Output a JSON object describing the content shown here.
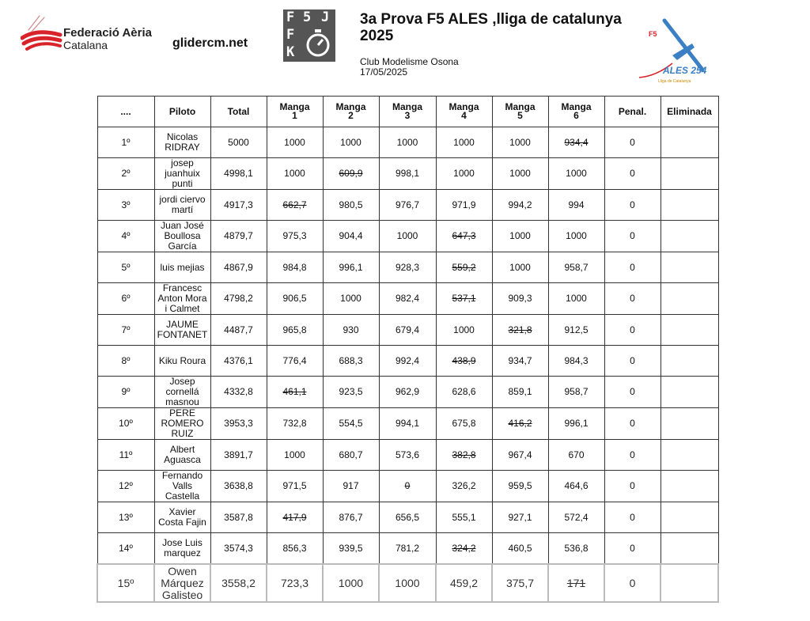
{
  "header": {
    "federation_name_line1": "Federació Aèria",
    "federation_name_line2": "Catalana",
    "website": "glidercm.net",
    "class_logo_letters": [
      "F",
      "5",
      "J",
      "F",
      "3",
      "K"
    ],
    "title": "3a Prova F5 ALES ,lliga de catalunya 2025",
    "club": "Club Modelisme Osona",
    "date": "17/05/2025",
    "ales_logo_text": "ALES 254",
    "ales_logo_f5": "F5",
    "ales_logo_sub": "Lliga de Catalunya"
  },
  "colors": {
    "federation_red": "#d8232a",
    "ales_blue": "#3b7fc4"
  },
  "table": {
    "columns": [
      "....",
      "Piloto",
      "Total",
      "Manga 1",
      "Manga 2",
      "Manga 3",
      "Manga 4",
      "Manga 5",
      "Manga 6",
      "Penal.",
      "Eliminada"
    ],
    "rows": [
      {
        "pos": "1º",
        "pilot": "Nicolas RIDRAY",
        "total": "5000",
        "mangas": [
          "1000",
          "1000",
          "1000",
          "1000",
          "1000",
          "934,4"
        ],
        "discarded": 6,
        "penal": "0",
        "eliminada": ""
      },
      {
        "pos": "2º",
        "pilot": "josep juanhuix punti",
        "total": "4998,1",
        "mangas": [
          "1000",
          "609,9",
          "998,1",
          "1000",
          "1000",
          "1000"
        ],
        "discarded": 2,
        "penal": "0",
        "eliminada": ""
      },
      {
        "pos": "3º",
        "pilot": "jordi ciervo martí",
        "total": "4917,3",
        "mangas": [
          "662,7",
          "980,5",
          "976,7",
          "971,9",
          "994,2",
          "994"
        ],
        "discarded": 1,
        "penal": "0",
        "eliminada": ""
      },
      {
        "pos": "4º",
        "pilot": "Juan José Boullosa García",
        "total": "4879,7",
        "mangas": [
          "975,3",
          "904,4",
          "1000",
          "647,3",
          "1000",
          "1000"
        ],
        "discarded": 4,
        "penal": "0",
        "eliminada": ""
      },
      {
        "pos": "5º",
        "pilot": "luis mejias",
        "total": "4867,9",
        "mangas": [
          "984,8",
          "996,1",
          "928,3",
          "559,2",
          "1000",
          "958,7"
        ],
        "discarded": 4,
        "penal": "0",
        "eliminada": ""
      },
      {
        "pos": "6º",
        "pilot": "Francesc Anton Mora i Calmet",
        "total": "4798,2",
        "mangas": [
          "906,5",
          "1000",
          "982,4",
          "537,1",
          "909,3",
          "1000"
        ],
        "discarded": 4,
        "penal": "0",
        "eliminada": ""
      },
      {
        "pos": "7º",
        "pilot": "JAUME FONTANET",
        "total": "4487,7",
        "mangas": [
          "965,8",
          "930",
          "679,4",
          "1000",
          "321,8",
          "912,5"
        ],
        "discarded": 5,
        "penal": "0",
        "eliminada": ""
      },
      {
        "pos": "8º",
        "pilot": "Kiku Roura",
        "total": "4376,1",
        "mangas": [
          "776,4",
          "688,3",
          "992,4",
          "438,9",
          "934,7",
          "984,3"
        ],
        "discarded": 4,
        "penal": "0",
        "eliminada": ""
      },
      {
        "pos": "9º",
        "pilot": "Josep cornellá masnou",
        "total": "4332,8",
        "mangas": [
          "461,1",
          "923,5",
          "962,9",
          "628,6",
          "859,1",
          "958,7"
        ],
        "discarded": 1,
        "penal": "0",
        "eliminada": ""
      },
      {
        "pos": "10º",
        "pilot": "PERE ROMERO RUIZ",
        "total": "3953,3",
        "mangas": [
          "732,8",
          "554,5",
          "994,1",
          "675,8",
          "416,2",
          "996,1"
        ],
        "discarded": 5,
        "penal": "0",
        "eliminada": ""
      },
      {
        "pos": "11º",
        "pilot": "Albert Aguasca",
        "total": "3891,7",
        "mangas": [
          "1000",
          "680,7",
          "573,6",
          "382,8",
          "967,4",
          "670"
        ],
        "discarded": 4,
        "penal": "0",
        "eliminada": ""
      },
      {
        "pos": "12º",
        "pilot": "Fernando Valls Castella",
        "total": "3638,8",
        "mangas": [
          "971,5",
          "917",
          "0",
          "326,2",
          "959,5",
          "464,6"
        ],
        "discarded": 3,
        "penal": "0",
        "eliminada": ""
      },
      {
        "pos": "13º",
        "pilot": "Xavier Costa Fajin",
        "total": "3587,8",
        "mangas": [
          "417,9",
          "876,7",
          "656,5",
          "555,1",
          "927,1",
          "572,4"
        ],
        "discarded": 1,
        "penal": "0",
        "eliminada": ""
      },
      {
        "pos": "14º",
        "pilot": "Jose Luis marquez",
        "total": "3574,3",
        "mangas": [
          "856,3",
          "939,5",
          "781,2",
          "324,2",
          "460,5",
          "536,8"
        ],
        "discarded": 4,
        "penal": "0",
        "eliminada": ""
      },
      {
        "pos": "15º",
        "pilot": "Owen Márquez Galisteo",
        "total": "3558,2",
        "mangas": [
          "723,3",
          "1000",
          "1000",
          "459,2",
          "375,7",
          "171"
        ],
        "discarded": 6,
        "penal": "0",
        "eliminada": ""
      }
    ]
  }
}
